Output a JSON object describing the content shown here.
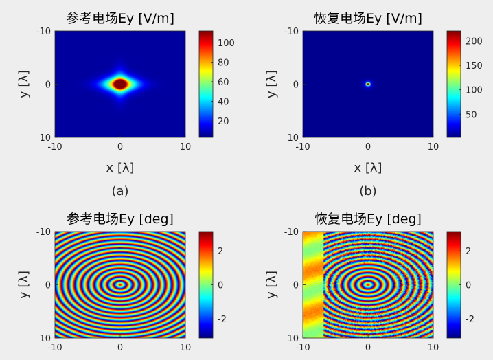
{
  "figure": {
    "background": "#eeeeee",
    "axis_color": "#262626",
    "colormap": "jet"
  },
  "chart_data": [
    {
      "type": "heatmap",
      "title": "参考电场Ey [V/m]",
      "subtitle": "(a)",
      "xlabel": "x [λ]",
      "ylabel": "y [λ]",
      "xlim": [
        -10,
        10
      ],
      "ylim": [
        -10,
        10
      ],
      "y_direction": "reverse",
      "x_ticks": [
        "-10",
        "0",
        "10"
      ],
      "y_ticks": [
        "-10",
        "0",
        "10"
      ],
      "colorbar": {
        "range": [
          3,
          112
        ],
        "ticks": [
          20,
          40,
          60,
          80,
          100
        ],
        "tick_labels": [
          "20",
          "40",
          "60",
          "80",
          "100"
        ]
      },
      "field": "reference-magnitude",
      "peak_value": 112,
      "peak_location": [
        0,
        0
      ]
    },
    {
      "type": "heatmap",
      "title": "恢复电场Ey [V/m]",
      "subtitle": "(b)",
      "xlabel": "x [λ]",
      "ylabel": "y [λ]",
      "xlim": [
        -10,
        10
      ],
      "ylim": [
        -10,
        10
      ],
      "y_direction": "reverse",
      "x_ticks": [
        "-10",
        "0",
        "10"
      ],
      "y_ticks": [
        "-10",
        "0",
        "10"
      ],
      "colorbar": {
        "range": [
          3,
          220
        ],
        "ticks": [
          50,
          100,
          150,
          200
        ],
        "tick_labels": [
          "50",
          "100",
          "150",
          "200"
        ]
      },
      "field": "recovered-magnitude",
      "peak_value": 220,
      "peak_location": [
        0,
        0
      ]
    },
    {
      "type": "heatmap",
      "title": "参考电场Ey [deg]",
      "ylabel": "y [λ]",
      "xlim": [
        -10,
        10
      ],
      "ylim": [
        -10,
        10
      ],
      "y_direction": "reverse",
      "x_ticks": [
        "-10",
        "0",
        "10"
      ],
      "y_ticks": [
        "-10",
        "0",
        "10"
      ],
      "colorbar": {
        "range": [
          -3.14,
          3.14
        ],
        "ticks": [
          -2,
          0,
          2
        ],
        "tick_labels": [
          "-2",
          "0",
          "2"
        ]
      },
      "field": "reference-phase"
    },
    {
      "type": "heatmap",
      "title": "恢复电场Ey [deg]",
      "ylabel": "y [λ]",
      "xlim": [
        -10,
        10
      ],
      "ylim": [
        -10,
        10
      ],
      "y_direction": "reverse",
      "x_ticks": [
        "-10",
        "0",
        "10"
      ],
      "y_ticks": [
        "-10",
        "0",
        "10"
      ],
      "colorbar": {
        "range": [
          -3.14,
          3.14
        ],
        "ticks": [
          -2,
          0,
          2
        ],
        "tick_labels": [
          "-2",
          "0",
          "2"
        ]
      },
      "field": "recovered-phase"
    }
  ]
}
